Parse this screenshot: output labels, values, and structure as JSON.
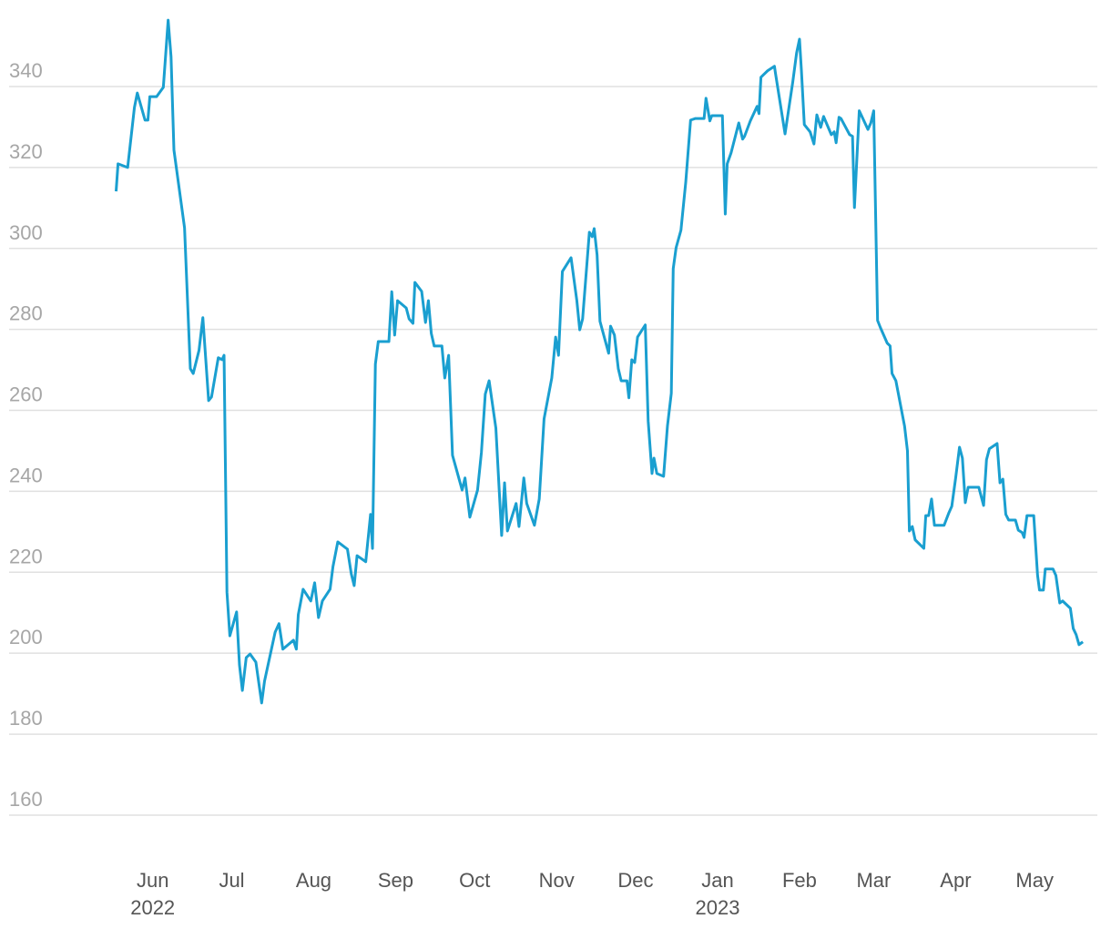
{
  "chart_data": {
    "type": "line",
    "x": [
      2022.376,
      2022.378,
      2022.388,
      2022.395,
      2022.398,
      2022.406,
      2022.409,
      2022.411,
      2022.418,
      2022.425,
      2022.43,
      2022.433,
      2022.436,
      2022.447,
      2022.453,
      2022.456,
      2022.462,
      2022.466,
      2022.472,
      2022.475,
      2022.482,
      2022.486,
      2022.488,
      2022.491,
      2022.494,
      2022.501,
      2022.504,
      2022.507,
      2022.511,
      2022.515,
      2022.521,
      2022.527,
      2022.53,
      2022.541,
      2022.545,
      2022.549,
      2022.56,
      2022.563,
      2022.565,
      2022.57,
      2022.578,
      2022.582,
      2022.586,
      2022.59,
      2022.598,
      2022.601,
      2022.606,
      2022.616,
      2022.62,
      2022.623,
      2022.626,
      2022.635,
      2022.64,
      2022.642,
      2022.645,
      2022.648,
      2022.659,
      2022.662,
      2022.665,
      2022.668,
      2022.677,
      2022.68,
      2022.684,
      2022.686,
      2022.693,
      2022.697,
      2022.7,
      2022.703,
      2022.706,
      2022.714,
      2022.717,
      2022.721,
      2022.725,
      2022.735,
      2022.738,
      2022.743,
      2022.751,
      2022.755,
      2022.759,
      2022.763,
      2022.77,
      2022.776,
      2022.779,
      2022.782,
      2022.791,
      2022.794,
      2022.799,
      2022.802,
      2022.81,
      2022.815,
      2022.82,
      2022.828,
      2022.832,
      2022.835,
      2022.839,
      2022.848,
      2022.854,
      2022.857,
      2022.86,
      2022.867,
      2022.87,
      2022.872,
      2022.875,
      2022.878,
      2022.887,
      2022.889,
      2022.893,
      2022.897,
      2022.9,
      2022.906,
      2022.908,
      2022.911,
      2022.914,
      2022.917,
      2022.925,
      2022.928,
      2022.932,
      2022.934,
      2022.937,
      2022.944,
      2022.948,
      2022.952,
      2022.954,
      2022.957,
      2022.962,
      2022.967,
      2022.972,
      2022.977,
      2022.986,
      2022.988,
      2022.992,
      2022.994,
      2023.005,
      2023.008,
      2023.01,
      2023.014,
      2023.022,
      2023.026,
      2023.028,
      2023.034,
      2023.041,
      2023.043,
      2023.045,
      2023.048,
      2023.052,
      2023.059,
      2023.06,
      2023.07,
      2023.078,
      2023.082,
      2023.085,
      2023.087,
      2023.09,
      2023.096,
      2023.1,
      2023.103,
      2023.107,
      2023.11,
      2023.118,
      2023.121,
      2023.123,
      2023.126,
      2023.128,
      2023.137,
      2023.14,
      2023.142,
      2023.147,
      2023.156,
      2023.159,
      2023.162,
      2023.166,
      2023.169,
      2023.176,
      2023.179,
      2023.181,
      2023.185,
      2023.194,
      2023.197,
      2023.199,
      2023.202,
      2023.205,
      2023.214,
      2023.216,
      2023.219,
      2023.222,
      2023.225,
      2023.235,
      2023.24,
      2023.243,
      2023.247,
      2023.251,
      2023.254,
      2023.257,
      2023.26,
      2023.271,
      2023.276,
      2023.279,
      2023.282,
      2023.29,
      2023.293,
      2023.296,
      2023.299,
      2023.302,
      2023.309,
      2023.312,
      2023.316,
      2023.318,
      2023.321,
      2023.328,
      2023.332,
      2023.334,
      2023.338,
      2023.34,
      2023.348,
      2023.351,
      2023.355,
      2023.358,
      2023.366,
      2023.369,
      2023.372,
      2023.375,
      2023.379
    ],
    "values": [
      314.1,
      320.9,
      320,
      334.8,
      338.4,
      331.7,
      331.7,
      337.5,
      337.5,
      339.8,
      356.4,
      347.4,
      324.3,
      305.1,
      270.3,
      269.1,
      274.8,
      282.9,
      262.4,
      263.3,
      273,
      272.5,
      273.6,
      215.1,
      204.3,
      210.2,
      197.1,
      190.8,
      198.9,
      199.8,
      197.8,
      187.7,
      193.1,
      205.2,
      207.3,
      201,
      203.2,
      201,
      209.5,
      215.8,
      212.9,
      217.4,
      208.8,
      212.9,
      215.8,
      221.4,
      227.5,
      225.7,
      219.6,
      216.7,
      224.1,
      222.6,
      234.3,
      225.9,
      271.4,
      277,
      277,
      289.3,
      278.6,
      287.1,
      285.3,
      282.6,
      281.5,
      291.6,
      289.4,
      281.7,
      287.1,
      279,
      275.9,
      275.9,
      268,
      273.6,
      248.9,
      240.3,
      243.3,
      233.6,
      240.3,
      249.6,
      264,
      267.3,
      255.6,
      229.1,
      242.1,
      230.2,
      237,
      231.3,
      243.3,
      237,
      231.6,
      238.1,
      257.9,
      268,
      278.1,
      273.6,
      294.3,
      297.7,
      287.1,
      279.9,
      282.6,
      304,
      302.9,
      304.9,
      298.4,
      282,
      274.1,
      280.8,
      278.6,
      270.3,
      267.3,
      267.3,
      263.1,
      272.5,
      271.8,
      278.1,
      281.1,
      257.4,
      244.4,
      248.2,
      244.4,
      243.7,
      256.1,
      264.2,
      295,
      300.2,
      304.5,
      316.4,
      331.7,
      332.1,
      332.1,
      337.1,
      331.5,
      332.8,
      332.8,
      308.5,
      320.9,
      323.6,
      331,
      327,
      327.7,
      331.5,
      335.1,
      333.3,
      342.3,
      343,
      343.9,
      345,
      343.4,
      328.3,
      341.1,
      348.3,
      351.7,
      343.9,
      330.6,
      328.8,
      325.8,
      333,
      329.9,
      332.6,
      328.1,
      328.8,
      326.1,
      332.4,
      332.1,
      328.1,
      327.7,
      310.1,
      334,
      329.4,
      331,
      334,
      282.2,
      280.4,
      276.6,
      275.9,
      269.1,
      267.3,
      256.1,
      250,
      230.2,
      231.3,
      228,
      225.9,
      234,
      234,
      238.1,
      231.6,
      231.6,
      234.7,
      236.3,
      243.3,
      250.9,
      248.2,
      237.2,
      241,
      241,
      236.5,
      247.8,
      250.5,
      251.8,
      242.1,
      243,
      234.3,
      232.9,
      232.9,
      230.4,
      229.8,
      228.6,
      234,
      234,
      219.2,
      215.6,
      215.6,
      220.8,
      220.8,
      219.2,
      212.4,
      212.9,
      211.1,
      206.1,
      204.6,
      202.1,
      202.8
    ],
    "color": "#1a9fd0",
    "xlim": [
      2022.265,
      2023.394
    ],
    "xticks": [
      {
        "value": 2022.414,
        "label": "Jun"
      },
      {
        "value": 2022.496,
        "label": "Jul"
      },
      {
        "value": 2022.581,
        "label": "Aug"
      },
      {
        "value": 2022.666,
        "label": "Sep"
      },
      {
        "value": 2022.748,
        "label": "Oct"
      },
      {
        "value": 2022.833,
        "label": "Nov"
      },
      {
        "value": 2022.915,
        "label": "Dec"
      },
      {
        "value": 2023,
        "label": "Jan"
      },
      {
        "value": 2023.085,
        "label": "Feb"
      },
      {
        "value": 2023.162,
        "label": "Mar"
      },
      {
        "value": 2023.247,
        "label": "Apr"
      },
      {
        "value": 2023.329,
        "label": "May"
      }
    ],
    "x_year_labels": [
      {
        "value": 2022.414,
        "label": "2022"
      },
      {
        "value": 2023,
        "label": "2023"
      }
    ],
    "ylim": [
      150,
      360
    ],
    "yticks": [
      160,
      180,
      200,
      220,
      240,
      260,
      280,
      300,
      320,
      340
    ],
    "grid": true
  }
}
